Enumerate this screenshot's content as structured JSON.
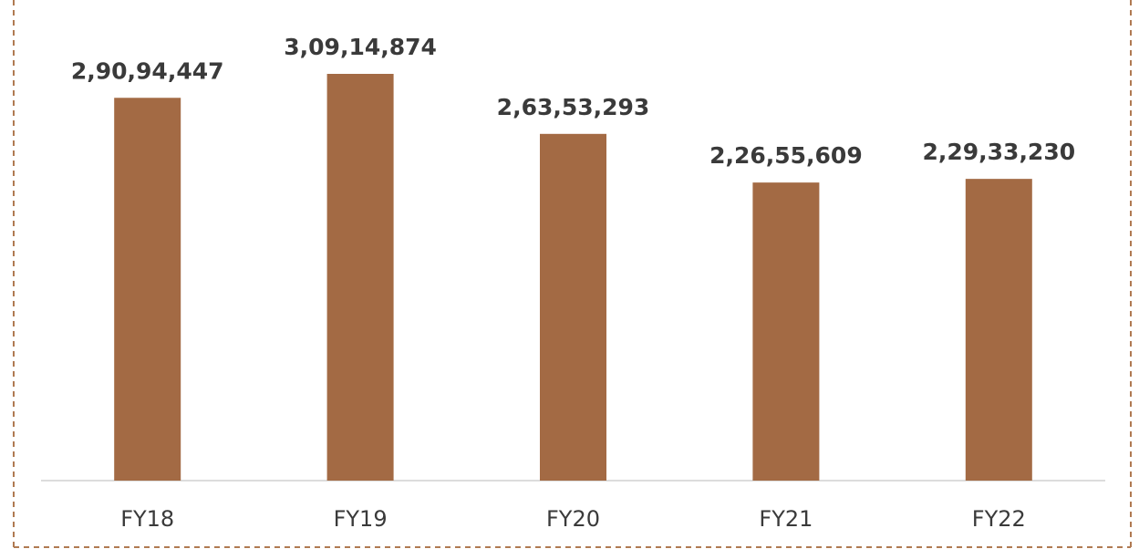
{
  "chart_data": {
    "type": "bar",
    "categories": [
      "FY18",
      "FY19",
      "FY20",
      "FY21",
      "FY22"
    ],
    "values": [
      29094447,
      30914874,
      26353293,
      22655609,
      22933230
    ],
    "value_labels": [
      "2,90,94,447",
      "3,09,14,874",
      "2,63,53,293",
      "2,26,55,609",
      "2,29,33,230"
    ],
    "color": "#a36a44"
  }
}
